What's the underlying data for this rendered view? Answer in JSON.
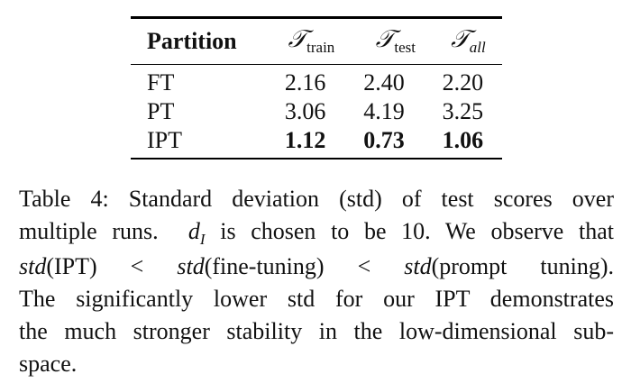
{
  "table": {
    "header": {
      "partition": "Partition",
      "cols": [
        {
          "symbol": "𝒯",
          "sub": "train",
          "sub_italic": false
        },
        {
          "symbol": "𝒯",
          "sub": "test",
          "sub_italic": false
        },
        {
          "symbol": "𝒯",
          "sub": "all",
          "sub_italic": true
        }
      ]
    },
    "rows": [
      {
        "label": "FT",
        "values": [
          "2.16",
          "2.40",
          "2.20"
        ],
        "bold": false
      },
      {
        "label": "PT",
        "values": [
          "3.06",
          "4.19",
          "3.25"
        ],
        "bold": false
      },
      {
        "label": "IPT",
        "values": [
          "1.12",
          "0.73",
          "1.06"
        ],
        "bold": true
      }
    ]
  },
  "caption": {
    "l1": "Table 4:  Standard deviation (std) of test scores over",
    "l2a": "multiple runs.",
    "l2_var": "d",
    "l2_sub": "I",
    "l2b": "is chosen to be 10.  We observe that",
    "l3_std1": "std",
    "l3_a": "(IPT)  <  ",
    "l3_std2": "std",
    "l3_b": "(fine-tuning)  <  ",
    "l3_std3": "std",
    "l3_c": "(prompt tuning).",
    "l4": "The significantly lower std for our IPT demonstrates",
    "l5": "the much stronger stability in the low-dimensional sub-",
    "l6": "space."
  }
}
